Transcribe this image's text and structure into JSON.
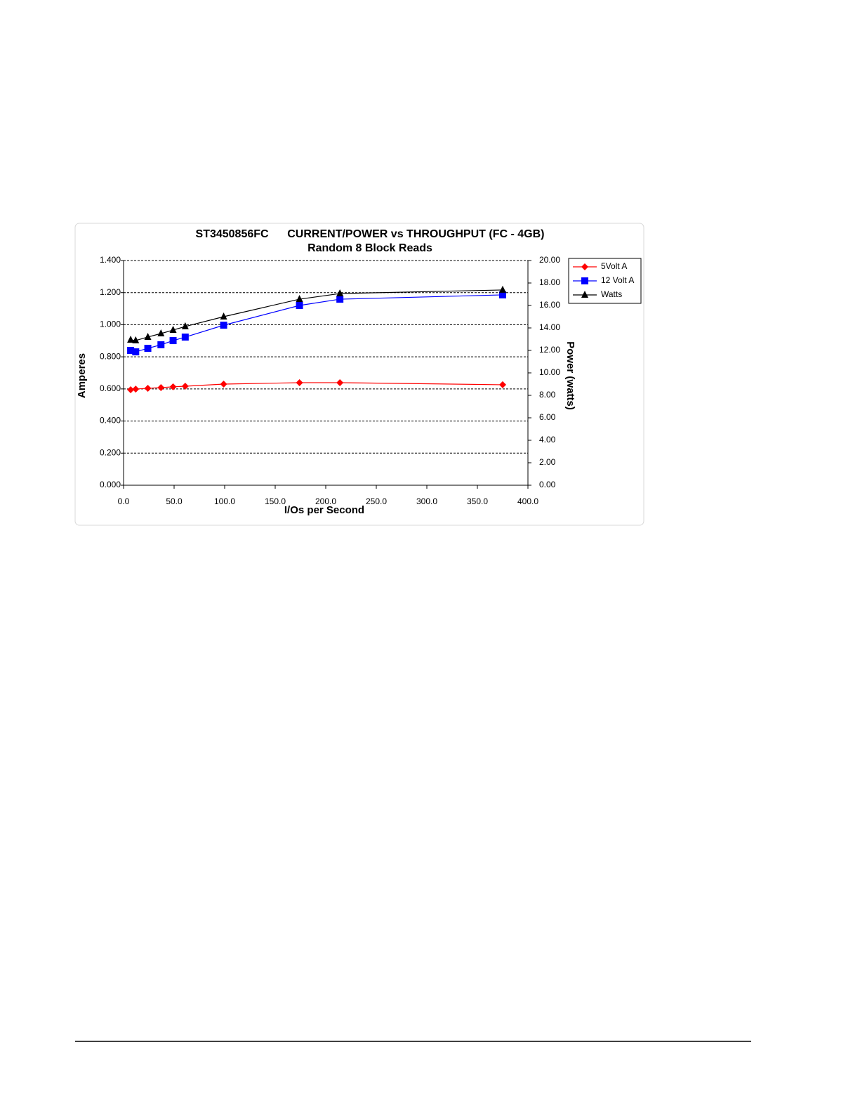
{
  "chart_data": {
    "type": "line",
    "title": "ST3450856FC      CURRENT/POWER vs THROUGHPUT (FC - 4GB)",
    "subtitle": "Random 8 Block Reads",
    "x_label": "I/Os per Second",
    "y_label": "Amperes",
    "y2_label": "Power (watts)",
    "x": [
      7,
      12,
      24,
      37,
      49,
      61,
      99,
      174,
      214,
      375
    ],
    "series": [
      {
        "name": "5Volt A",
        "color": "#ff0000",
        "marker": "diamond",
        "values": [
          0.595,
          0.599,
          0.604,
          0.608,
          0.613,
          0.617,
          0.63,
          0.639,
          0.639,
          0.626
        ]
      },
      {
        "name": "12 Volt A",
        "color": "#0000ff",
        "marker": "square",
        "values": [
          0.84,
          0.831,
          0.853,
          0.875,
          0.901,
          0.923,
          0.997,
          1.12,
          1.159,
          1.186
        ]
      },
      {
        "name": "Watts",
        "color": "#000000",
        "marker": "triangle",
        "axis": "y2",
        "values": [
          12.94,
          12.88,
          13.19,
          13.5,
          13.81,
          14.13,
          15.0,
          16.56,
          17.06,
          17.38
        ]
      }
    ],
    "xlim": [
      0,
      400
    ],
    "xticks": [
      {
        "value": 0,
        "label": "0.0"
      },
      {
        "value": 50,
        "label": "50.0"
      },
      {
        "value": 100,
        "label": "100.0"
      },
      {
        "value": 150,
        "label": "150.0"
      },
      {
        "value": 200,
        "label": "200.0"
      },
      {
        "value": 250,
        "label": "250.0"
      },
      {
        "value": 300,
        "label": "300.0"
      },
      {
        "value": 350,
        "label": "350.0"
      },
      {
        "value": 400,
        "label": "400.0"
      }
    ],
    "ylim": [
      0,
      1.4
    ],
    "yticks": [
      {
        "value": 0,
        "label": "0.000"
      },
      {
        "value": 0.2,
        "label": "0.200"
      },
      {
        "value": 0.4,
        "label": "0.400"
      },
      {
        "value": 0.6,
        "label": "0.600"
      },
      {
        "value": 0.8,
        "label": "0.800"
      },
      {
        "value": 1,
        "label": "1.000"
      },
      {
        "value": 1.2,
        "label": "1.200"
      },
      {
        "value": 1.4,
        "label": "1.400"
      }
    ],
    "y2lim": [
      0,
      20
    ],
    "y2ticks": [
      {
        "value": 0,
        "label": "0.00"
      },
      {
        "value": 2,
        "label": "2.00"
      },
      {
        "value": 4,
        "label": "4.00"
      },
      {
        "value": 6,
        "label": "6.00"
      },
      {
        "value": 8,
        "label": "8.00"
      },
      {
        "value": 10,
        "label": "10.00"
      },
      {
        "value": 12,
        "label": "12.00"
      },
      {
        "value": 14,
        "label": "14.00"
      },
      {
        "value": 16,
        "label": "16.00"
      },
      {
        "value": 18,
        "label": "18.00"
      },
      {
        "value": 20,
        "label": "20.00"
      }
    ],
    "grid": true,
    "legend": "right"
  }
}
